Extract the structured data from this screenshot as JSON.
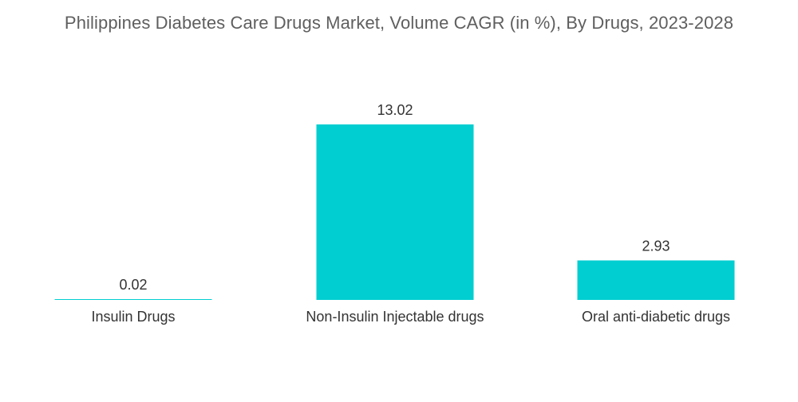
{
  "chart_data": {
    "type": "bar",
    "title": "Philippines Diabetes Care Drugs Market, Volume CAGR (in %), By Drugs, 2023-2028",
    "categories": [
      "Insulin Drugs",
      "Non-Insulin Injectable drugs",
      "Oral anti-diabetic drugs"
    ],
    "values": [
      0.02,
      13.02,
      2.93
    ],
    "value_labels": [
      "0.02",
      "13.02",
      "2.93"
    ],
    "xlabel": "",
    "ylabel": "",
    "ylim": [
      0,
      13.02
    ],
    "grid": false,
    "legend": "none",
    "bar_color": "#00ced1"
  }
}
